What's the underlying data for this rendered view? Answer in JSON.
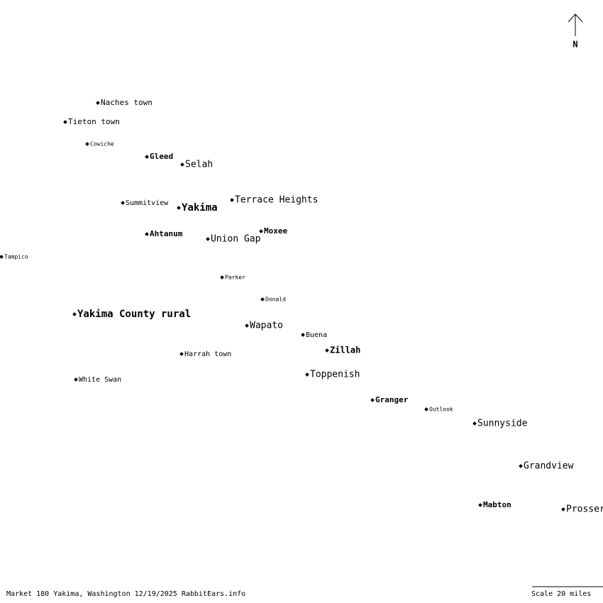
{
  "places": [
    {
      "label": "Naches town"
    },
    {
      "label": "Tieton town"
    },
    {
      "label": "Cowiche"
    },
    {
      "label": "Gleed"
    },
    {
      "label": "Selah"
    },
    {
      "label": "Summitview"
    },
    {
      "label": "Yakima"
    },
    {
      "label": "Terrace Heights"
    },
    {
      "label": "Ahtanum"
    },
    {
      "label": "Union Gap"
    },
    {
      "label": "Moxee"
    },
    {
      "label": "Tampico"
    },
    {
      "label": "Parker"
    },
    {
      "label": "Donald"
    },
    {
      "label": "Yakima County rural"
    },
    {
      "label": "Wapato"
    },
    {
      "label": "Buena"
    },
    {
      "label": "Zillah"
    },
    {
      "label": "Harrah town"
    },
    {
      "label": "Toppenish"
    },
    {
      "label": "White Swan"
    },
    {
      "label": "Granger"
    },
    {
      "label": "Outlook"
    },
    {
      "label": "Sunnyside"
    },
    {
      "label": "Grandview"
    },
    {
      "label": "Mabton"
    },
    {
      "label": "Prosser"
    }
  ],
  "north": "N",
  "footer": "Market 180 Yakima, Washington 12/19/2025 RabbitEars.info",
  "scale": "Scale 20 miles"
}
